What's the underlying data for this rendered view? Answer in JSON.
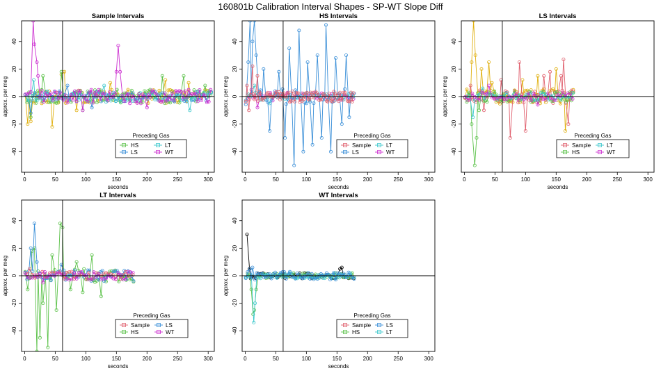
{
  "figure_title": "160801b   Calibration Interval Shapes - SP-WT Slope Diff",
  "colors": {
    "Sample": "#e0606e",
    "HS": "#5cc24a",
    "LS": "#3a8fd8",
    "LT": "#3cc8cc",
    "WT": "#cc2ed0",
    "WT_gold": "#e0b010",
    "marker_black": "#000000",
    "axis": "#000000"
  },
  "chart_data": [
    {
      "id": "sample-intervals",
      "type": "line",
      "title": "Sample Intervals",
      "xlabel": "seconds",
      "ylabel": "approx. per meg",
      "xlim": [
        -5,
        310
      ],
      "ylim": [
        -55,
        55
      ],
      "xticks": [
        0,
        50,
        100,
        150,
        200,
        250,
        300
      ],
      "yticks": [
        -40,
        -20,
        0,
        20,
        40
      ],
      "vline": 62,
      "hline": 0,
      "legend": {
        "title": "Preceding Gas",
        "entries": [
          {
            "name": "HS",
            "color": "#5cc24a"
          },
          {
            "name": "LT",
            "color": "#3cc8cc"
          },
          {
            "name": "LS",
            "color": "#3a8fd8"
          },
          {
            "name": "WT",
            "color": "#cc2ed0"
          }
        ]
      },
      "series": [
        {
          "name": "WT",
          "color": "#e0b010",
          "x_end": 305,
          "amp": 5,
          "step": 3,
          "spikes": [
            [
              5,
              -20
            ],
            [
              10,
              -18
            ],
            [
              45,
              -22
            ],
            [
              60,
              16
            ],
            [
              65,
              18
            ],
            [
              85,
              -10
            ],
            [
              140,
              10
            ],
            [
              230,
              12
            ],
            [
              268,
              10
            ]
          ]
        },
        {
          "name": "HS",
          "color": "#5cc24a",
          "x_end": 305,
          "amp": 5,
          "step": 3,
          "spikes": [
            [
              10,
              -15
            ],
            [
              30,
              15
            ],
            [
              60,
              18
            ],
            [
              95,
              -10
            ],
            [
              225,
              15
            ],
            [
              260,
              15
            ],
            [
              295,
              8
            ]
          ]
        },
        {
          "name": "LS",
          "color": "#3a8fd8",
          "x_end": 305,
          "amp": 4,
          "step": 4,
          "spikes": [
            [
              10,
              -12
            ],
            [
              70,
              8
            ],
            [
              110,
              -8
            ]
          ]
        },
        {
          "name": "LT",
          "color": "#3cc8cc",
          "x_end": 305,
          "amp": 4,
          "step": 4,
          "spikes": [
            [
              15,
              12
            ],
            [
              130,
              8
            ],
            [
              270,
              -10
            ]
          ]
        },
        {
          "name": "WT",
          "color": "#cc2ed0",
          "x_end": 305,
          "amp": 5,
          "step": 3,
          "spikes": [
            [
              12,
              38
            ],
            [
              14,
              55
            ],
            [
              16,
              38
            ],
            [
              18,
              30
            ],
            [
              20,
              25
            ],
            [
              22,
              15
            ],
            [
              150,
              18
            ],
            [
              153,
              37
            ],
            [
              156,
              18
            ],
            [
              95,
              -10
            ],
            [
              200,
              -8
            ]
          ]
        }
      ]
    },
    {
      "id": "hs-intervals",
      "type": "line",
      "title": "HS Intervals",
      "xlabel": "seconds",
      "ylabel": "approx. per meg",
      "xlim": [
        -5,
        310
      ],
      "ylim": [
        -55,
        55
      ],
      "xticks": [
        0,
        50,
        100,
        150,
        200,
        250,
        300
      ],
      "yticks": [
        -40,
        -20,
        0,
        20,
        40
      ],
      "vline": 62,
      "hline": 0,
      "legend": {
        "title": "Preceding Gas",
        "entries": [
          {
            "name": "Sample",
            "color": "#e0606e"
          },
          {
            "name": "LT",
            "color": "#3cc8cc"
          },
          {
            "name": "LS",
            "color": "#3a8fd8"
          },
          {
            "name": "WT",
            "color": "#cc2ed0"
          }
        ]
      },
      "series": [
        {
          "name": "WT",
          "color": "#cc2ed0",
          "x_end": 178,
          "amp": 3,
          "step": 4,
          "spikes": [
            [
              10,
              5
            ],
            [
              20,
              -8
            ]
          ]
        },
        {
          "name": "LT",
          "color": "#3cc8cc",
          "x_end": 178,
          "amp": 3,
          "step": 4,
          "spikes": [
            [
              15,
              8
            ],
            [
              40,
              -5
            ]
          ]
        },
        {
          "name": "LS",
          "color": "#3a8fd8",
          "x_end": 178,
          "amp": 6,
          "step": 3,
          "spikes": [
            [
              5,
              25
            ],
            [
              8,
              55
            ],
            [
              12,
              40
            ],
            [
              15,
              55
            ],
            [
              18,
              30
            ],
            [
              30,
              20
            ],
            [
              40,
              -25
            ],
            [
              55,
              18
            ],
            [
              65,
              -30
            ],
            [
              72,
              35
            ],
            [
              80,
              -50
            ],
            [
              88,
              48
            ],
            [
              95,
              -40
            ],
            [
              102,
              25
            ],
            [
              110,
              -35
            ],
            [
              118,
              30
            ],
            [
              125,
              -30
            ],
            [
              132,
              52
            ],
            [
              140,
              -40
            ],
            [
              148,
              28
            ],
            [
              158,
              -20
            ],
            [
              165,
              30
            ],
            [
              170,
              -15
            ]
          ]
        },
        {
          "name": "Sample",
          "color": "#e0606e",
          "x_end": 178,
          "amp": 4,
          "step": 2,
          "spikes": [
            [
              3,
              8
            ],
            [
              6,
              -10
            ],
            [
              12,
              22
            ],
            [
              20,
              15
            ]
          ]
        }
      ]
    },
    {
      "id": "ls-intervals",
      "type": "line",
      "title": "LS Intervals",
      "xlabel": "seconds",
      "ylabel": "approx. per meg",
      "xlim": [
        -5,
        310
      ],
      "ylim": [
        -55,
        55
      ],
      "xticks": [
        0,
        50,
        100,
        150,
        200,
        250,
        300
      ],
      "yticks": [
        -40,
        -20,
        0,
        20,
        40
      ],
      "vline": 62,
      "hline": 0,
      "legend": {
        "title": "Preceding Gas",
        "entries": [
          {
            "name": "Sample",
            "color": "#e0606e"
          },
          {
            "name": "LT",
            "color": "#3cc8cc"
          },
          {
            "name": "HS",
            "color": "#5cc24a"
          },
          {
            "name": "WT",
            "color": "#cc2ed0"
          }
        ]
      },
      "series": [
        {
          "name": "WT",
          "color": "#e0b010",
          "x_end": 178,
          "amp": 6,
          "step": 3,
          "spikes": [
            [
              12,
              25
            ],
            [
              15,
              55
            ],
            [
              18,
              30
            ],
            [
              28,
              20
            ],
            [
              40,
              25
            ],
            [
              45,
              10
            ],
            [
              95,
              12
            ],
            [
              120,
              15
            ],
            [
              150,
              20
            ],
            [
              165,
              -25
            ]
          ]
        },
        {
          "name": "Sample",
          "color": "#e0606e",
          "x_end": 178,
          "amp": 5,
          "step": 3,
          "spikes": [
            [
              10,
              8
            ],
            [
              32,
              -10
            ],
            [
              60,
              12
            ],
            [
              75,
              -30
            ],
            [
              90,
              25
            ],
            [
              100,
              -25
            ],
            [
              130,
              15
            ],
            [
              140,
              18
            ],
            [
              158,
              15
            ],
            [
              162,
              27
            ],
            [
              170,
              -20
            ]
          ]
        },
        {
          "name": "HS",
          "color": "#5cc24a",
          "x_end": 178,
          "amp": 4,
          "step": 3,
          "spikes": [
            [
              12,
              -20
            ],
            [
              15,
              -55
            ],
            [
              17,
              -50
            ],
            [
              20,
              -30
            ],
            [
              24,
              -10
            ]
          ]
        },
        {
          "name": "LT",
          "color": "#3cc8cc",
          "x_end": 178,
          "amp": 3,
          "step": 4,
          "spikes": [
            [
              14,
              -15
            ],
            [
              30,
              6
            ]
          ]
        },
        {
          "name": "WT",
          "color": "#cc2ed0",
          "x_end": 178,
          "amp": 3,
          "step": 4,
          "spikes": [
            [
              40,
              8
            ],
            [
              120,
              -6
            ]
          ]
        }
      ]
    },
    {
      "id": "lt-intervals",
      "type": "line",
      "title": "LT Intervals",
      "xlabel": "seconds",
      "ylabel": "approx. per meg",
      "xlim": [
        -5,
        310
      ],
      "ylim": [
        -55,
        55
      ],
      "xticks": [
        0,
        50,
        100,
        150,
        200,
        250,
        300
      ],
      "yticks": [
        -40,
        -20,
        0,
        20,
        40
      ],
      "vline": 62,
      "hline": 0,
      "legend": {
        "title": "Preceding Gas",
        "entries": [
          {
            "name": "Sample",
            "color": "#e0606e"
          },
          {
            "name": "LS",
            "color": "#3a8fd8"
          },
          {
            "name": "HS",
            "color": "#5cc24a"
          },
          {
            "name": "WT",
            "color": "#cc2ed0"
          }
        ]
      },
      "series": [
        {
          "name": "HS",
          "color": "#5cc24a",
          "x_end": 178,
          "amp": 5,
          "step": 3,
          "spikes": [
            [
              5,
              -10
            ],
            [
              12,
              18
            ],
            [
              16,
              20
            ],
            [
              20,
              -55
            ],
            [
              25,
              -45
            ],
            [
              30,
              -20
            ],
            [
              38,
              -52
            ],
            [
              45,
              15
            ],
            [
              52,
              -25
            ],
            [
              58,
              38
            ],
            [
              62,
              35
            ],
            [
              75,
              -10
            ],
            [
              85,
              10
            ],
            [
              95,
              -12
            ],
            [
              110,
              15
            ],
            [
              125,
              -15
            ]
          ]
        },
        {
          "name": "LS",
          "color": "#3a8fd8",
          "x_end": 178,
          "amp": 4,
          "step": 3,
          "spikes": [
            [
              10,
              20
            ],
            [
              16,
              38
            ],
            [
              20,
              10
            ],
            [
              60,
              8
            ]
          ]
        },
        {
          "name": "Sample",
          "color": "#e0606e",
          "x_end": 178,
          "amp": 3,
          "step": 4,
          "spikes": [
            [
              8,
              5
            ]
          ]
        },
        {
          "name": "WT",
          "color": "#cc2ed0",
          "x_end": 178,
          "amp": 3,
          "step": 4,
          "spikes": [
            [
              30,
              -5
            ]
          ]
        }
      ]
    },
    {
      "id": "wt-intervals",
      "type": "line",
      "title": "WT Intervals",
      "xlabel": "seconds",
      "ylabel": "approx. per meg",
      "xlim": [
        -5,
        310
      ],
      "ylim": [
        -55,
        55
      ],
      "xticks": [
        0,
        50,
        100,
        150,
        200,
        250,
        300
      ],
      "yticks": [
        -40,
        -20,
        0,
        20,
        40
      ],
      "vline": 62,
      "hline": 0,
      "legend": {
        "title": "Preceding Gas",
        "entries": [
          {
            "name": "Sample",
            "color": "#e0606e"
          },
          {
            "name": "LS",
            "color": "#3a8fd8"
          },
          {
            "name": "HS",
            "color": "#5cc24a"
          },
          {
            "name": "LT",
            "color": "#3cc8cc"
          }
        ]
      },
      "series": [
        {
          "name": "Sample",
          "color": "#000000",
          "x_end": 178,
          "amp": 2,
          "step": 4,
          "spikes": [
            [
              1,
              30
            ],
            [
              3,
              30
            ],
            [
              5,
              15
            ],
            [
              7,
              5
            ],
            [
              155,
              5
            ],
            [
              158,
              6
            ]
          ]
        },
        {
          "name": "HS",
          "color": "#5cc24a",
          "x_end": 178,
          "amp": 2,
          "step": 3,
          "spikes": [
            [
              10,
              -10
            ],
            [
              13,
              -28
            ],
            [
              15,
              -25
            ],
            [
              18,
              -10
            ]
          ]
        },
        {
          "name": "LT",
          "color": "#3cc8cc",
          "x_end": 178,
          "amp": 2,
          "step": 3,
          "spikes": [
            [
              12,
              -20
            ],
            [
              14,
              -34
            ],
            [
              16,
              -20
            ]
          ]
        },
        {
          "name": "LS",
          "color": "#3a8fd8",
          "x_end": 178,
          "amp": 3,
          "step": 3,
          "spikes": [
            [
              8,
              5
            ],
            [
              12,
              6
            ]
          ]
        }
      ]
    }
  ]
}
